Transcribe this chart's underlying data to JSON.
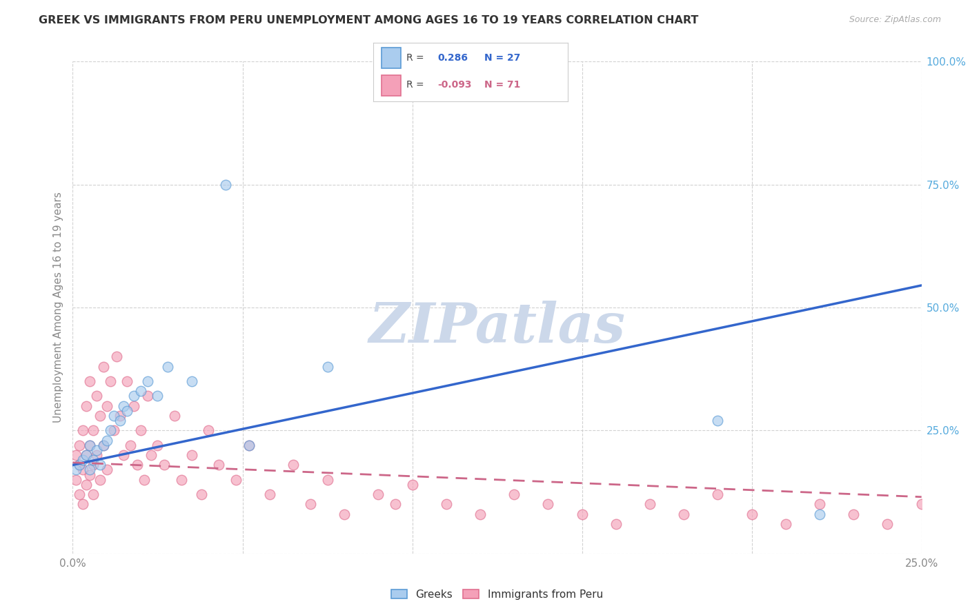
{
  "title": "GREEK VS IMMIGRANTS FROM PERU UNEMPLOYMENT AMONG AGES 16 TO 19 YEARS CORRELATION CHART",
  "source": "Source: ZipAtlas.com",
  "ylabel": "Unemployment Among Ages 16 to 19 years",
  "x_min": 0.0,
  "x_max": 0.25,
  "y_min": 0.0,
  "y_max": 1.0,
  "blue_color": "#5b9bd5",
  "pink_color": "#e07090",
  "blue_scatter_color": "#aaccee",
  "pink_scatter_color": "#f4a0b8",
  "blue_line_color": "#3366cc",
  "pink_line_color": "#cc6688",
  "watermark_color": "#ccd8ea",
  "bg_color": "#ffffff",
  "grid_color": "#cccccc",
  "tick_color": "#888888",
  "right_tick_color": "#55aadd",
  "greek_x": [
    0.001,
    0.002,
    0.003,
    0.004,
    0.005,
    0.005,
    0.006,
    0.007,
    0.008,
    0.009,
    0.01,
    0.011,
    0.012,
    0.014,
    0.015,
    0.016,
    0.018,
    0.02,
    0.022,
    0.025,
    0.028,
    0.035,
    0.045,
    0.052,
    0.075,
    0.19,
    0.22
  ],
  "greek_y": [
    0.17,
    0.18,
    0.19,
    0.2,
    0.17,
    0.22,
    0.19,
    0.21,
    0.18,
    0.22,
    0.23,
    0.25,
    0.28,
    0.27,
    0.3,
    0.29,
    0.32,
    0.33,
    0.35,
    0.32,
    0.38,
    0.35,
    0.75,
    0.22,
    0.38,
    0.27,
    0.08
  ],
  "peru_x": [
    0.001,
    0.001,
    0.002,
    0.002,
    0.002,
    0.003,
    0.003,
    0.003,
    0.004,
    0.004,
    0.004,
    0.005,
    0.005,
    0.005,
    0.006,
    0.006,
    0.006,
    0.007,
    0.007,
    0.008,
    0.008,
    0.009,
    0.009,
    0.01,
    0.01,
    0.011,
    0.012,
    0.013,
    0.014,
    0.015,
    0.016,
    0.017,
    0.018,
    0.019,
    0.02,
    0.021,
    0.022,
    0.023,
    0.025,
    0.027,
    0.03,
    0.032,
    0.035,
    0.038,
    0.04,
    0.043,
    0.048,
    0.052,
    0.058,
    0.065,
    0.07,
    0.075,
    0.08,
    0.09,
    0.095,
    0.1,
    0.11,
    0.12,
    0.13,
    0.14,
    0.15,
    0.16,
    0.17,
    0.18,
    0.19,
    0.2,
    0.21,
    0.22,
    0.23,
    0.24,
    0.25
  ],
  "peru_y": [
    0.2,
    0.15,
    0.22,
    0.18,
    0.12,
    0.25,
    0.17,
    0.1,
    0.2,
    0.14,
    0.3,
    0.22,
    0.16,
    0.35,
    0.25,
    0.18,
    0.12,
    0.32,
    0.2,
    0.28,
    0.15,
    0.38,
    0.22,
    0.3,
    0.17,
    0.35,
    0.25,
    0.4,
    0.28,
    0.2,
    0.35,
    0.22,
    0.3,
    0.18,
    0.25,
    0.15,
    0.32,
    0.2,
    0.22,
    0.18,
    0.28,
    0.15,
    0.2,
    0.12,
    0.25,
    0.18,
    0.15,
    0.22,
    0.12,
    0.18,
    0.1,
    0.15,
    0.08,
    0.12,
    0.1,
    0.14,
    0.1,
    0.08,
    0.12,
    0.1,
    0.08,
    0.06,
    0.1,
    0.08,
    0.12,
    0.08,
    0.06,
    0.1,
    0.08,
    0.06,
    0.1
  ],
  "greek_trend_x0": 0.0,
  "greek_trend_y0": 0.18,
  "greek_trend_x1": 0.25,
  "greek_trend_y1": 0.545,
  "peru_trend_x0": 0.0,
  "peru_trend_y0": 0.185,
  "peru_trend_x1": 0.25,
  "peru_trend_y1": 0.115
}
